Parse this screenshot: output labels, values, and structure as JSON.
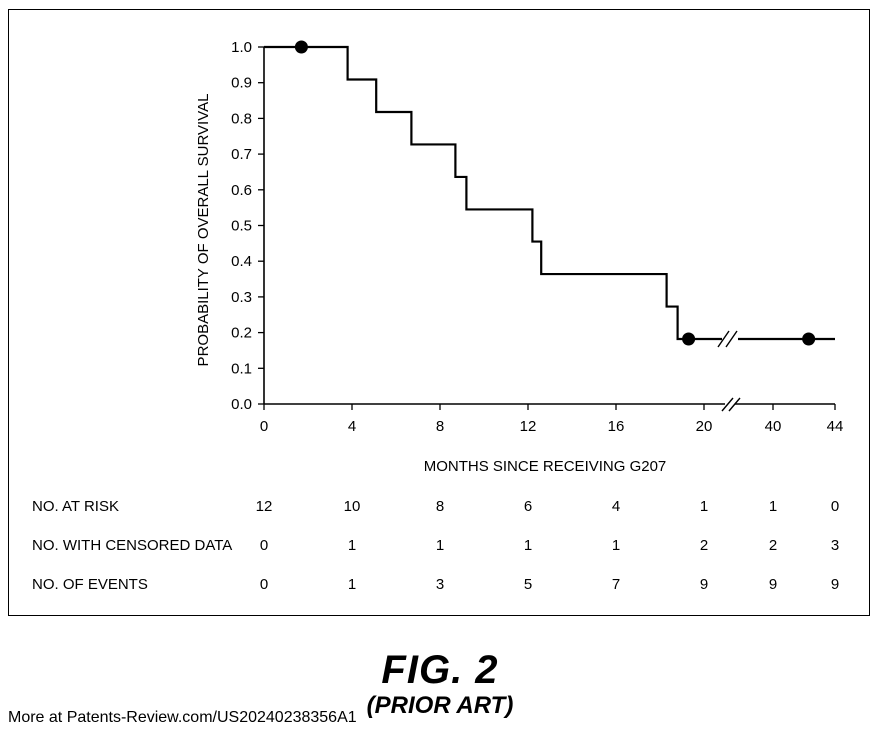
{
  "chart_data": {
    "type": "line",
    "subtype": "kaplan-meier step curve",
    "title": "",
    "xlabel": "MONTHS SINCE RECEIVING G207",
    "ylabel": "PROBABILITY OF OVERALL SURVIVAL",
    "xlim": [
      0,
      44
    ],
    "ylim": [
      0.0,
      1.0
    ],
    "grid": false,
    "axis_break": {
      "from": 20,
      "to": 40,
      "symbol": "//"
    },
    "x_ticks": [
      "0",
      "4",
      "8",
      "12",
      "16",
      "20",
      "40",
      "44"
    ],
    "y_ticks": [
      "0.0",
      "0.1",
      "0.2",
      "0.3",
      "0.4",
      "0.5",
      "0.6",
      "0.7",
      "0.8",
      "0.9",
      "1.0"
    ],
    "series": [
      {
        "step_points": [
          {
            "x": 0,
            "y": 1.0
          },
          {
            "x": 3.8,
            "y": 0.909
          },
          {
            "x": 5.1,
            "y": 0.818
          },
          {
            "x": 6.7,
            "y": 0.727
          },
          {
            "x": 8.7,
            "y": 0.636
          },
          {
            "x": 9.2,
            "y": 0.545
          },
          {
            "x": 12.2,
            "y": 0.455
          },
          {
            "x": 12.6,
            "y": 0.364
          },
          {
            "x": 18.3,
            "y": 0.273
          },
          {
            "x": 18.8,
            "y": 0.182
          },
          {
            "x": 44,
            "y": 0.182
          }
        ],
        "censored": [
          {
            "x": 1.7,
            "y": 1.0
          },
          {
            "x": 19.3,
            "y": 0.182
          },
          {
            "x": 42.3,
            "y": 0.182
          }
        ]
      }
    ],
    "risk_table": {
      "rows": [
        {
          "label": "NO. AT RISK",
          "values": [
            "12",
            "10",
            "8",
            "6",
            "4",
            "1",
            "1",
            "0"
          ]
        },
        {
          "label": "NO. WITH CENSORED DATA",
          "values": [
            "0",
            "1",
            "1",
            "1",
            "1",
            "2",
            "2",
            "3"
          ]
        },
        {
          "label": "NO. OF EVENTS",
          "values": [
            "0",
            "1",
            "3",
            "5",
            "7",
            "9",
            "9",
            "9"
          ]
        }
      ]
    }
  },
  "figure": {
    "number": "FIG. 2",
    "subtitle": "(PRIOR ART)"
  },
  "footer": {
    "source_note": "More at Patents-Review.com/US20240238356A1"
  }
}
